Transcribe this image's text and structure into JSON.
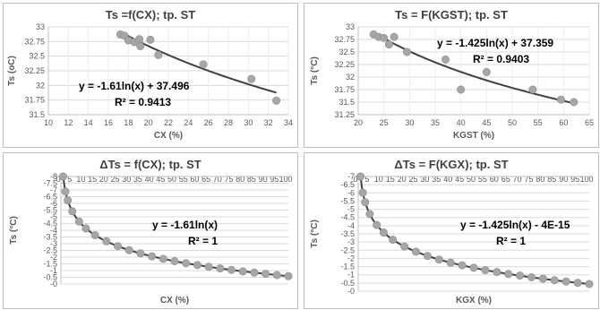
{
  "chart_data": [
    {
      "type": "scatter",
      "title": "Ts =f(CX); tp. ST",
      "xlabel": "CX (%)",
      "ylabel": "Ts (oC)",
      "xlim": [
        10,
        34
      ],
      "ylim": [
        31.5,
        33
      ],
      "xticks": [
        "10",
        "12",
        "14",
        "16",
        "18",
        "20",
        "22",
        "24",
        "26",
        "28",
        "30",
        "32",
        "34"
      ],
      "yticks": [
        "31.5",
        "31.75",
        "32",
        "32.25",
        "32.5",
        "32.75",
        "33"
      ],
      "grid": true,
      "series": [
        {
          "x": [
            17.2,
            17.6,
            18.0,
            18.6,
            19.1,
            19.2,
            20.2,
            21.0,
            25.5,
            30.3,
            32.8
          ],
          "y": [
            32.87,
            32.85,
            32.77,
            32.74,
            32.79,
            32.67,
            32.78,
            32.52,
            32.36,
            32.11,
            31.74
          ]
        }
      ],
      "trendline": {
        "kind": "log",
        "a": -1.61,
        "b": 37.496,
        "x_from": 17.2,
        "x_to": 32.8
      },
      "equation": "y = -1.61ln(x) + 37.496",
      "r2": "R² = 0.9413",
      "marker_color": "#a6a6a6",
      "line_color": "#404040"
    },
    {
      "type": "scatter",
      "title": "Ts = F(KGST); tp. ST",
      "xlabel": "KGST (%)",
      "ylabel": "Ts (°C)",
      "xlim": [
        20,
        65
      ],
      "ylim": [
        31.25,
        33
      ],
      "xticks": [
        "20",
        "25",
        "30",
        "35",
        "40",
        "45",
        "50",
        "55",
        "60",
        "65"
      ],
      "yticks": [
        "31.25",
        "31.5",
        "31.75",
        "32",
        "32.25",
        "32.5",
        "32.75",
        "33"
      ],
      "grid": true,
      "series": [
        {
          "x": [
            23.0,
            24.0,
            25.0,
            26.0,
            27.0,
            29.5,
            37.0,
            40.0,
            45.0,
            54.0,
            59.5,
            62.0
          ],
          "y": [
            32.85,
            32.8,
            32.78,
            32.65,
            32.8,
            32.5,
            32.35,
            31.75,
            32.1,
            31.75,
            31.55,
            31.5
          ]
        }
      ],
      "trendline": {
        "kind": "log",
        "a": -1.425,
        "b": 37.359,
        "x_from": 23.0,
        "x_to": 62.0
      },
      "equation": "y = -1.425ln(x) + 37.359",
      "r2": "R² = 0.9403",
      "marker_color": "#a6a6a6",
      "line_color": "#404040"
    },
    {
      "type": "line",
      "title": "ΔTs = f(CX); tp. ST",
      "xlabel": "CX (%)",
      "ylabel": "Ts (°C)",
      "xlim": [
        0,
        100
      ],
      "ylim": [
        -8,
        0
      ],
      "xticks": [
        "0",
        "5",
        "10",
        "15",
        "20",
        "25",
        "30",
        "35",
        "40",
        "45",
        "50",
        "55",
        "60",
        "65",
        "70",
        "75",
        "80",
        "85",
        "90",
        "95",
        "100"
      ],
      "yticks": [
        "-0",
        "-0.5",
        "-1",
        "-1.5",
        "-2",
        "-2.5",
        "-3",
        "-3.5",
        "-4",
        "-4.5",
        "-5",
        "-5.5",
        "-6",
        "-6.5",
        "-7",
        "-7.5",
        "-8"
      ],
      "grid": true,
      "series": [
        {
          "x": [
            1,
            2,
            3,
            5,
            8,
            11,
            15,
            20,
            25,
            30,
            35,
            40,
            45,
            50,
            55,
            60,
            65,
            70,
            75,
            80,
            85,
            90,
            95,
            100
          ],
          "y": [
            0,
            -1.12,
            -1.77,
            -2.59,
            -3.35,
            -3.86,
            -4.36,
            -4.82,
            -5.18,
            -5.48,
            -5.72,
            -5.94,
            -6.13,
            -6.3,
            -6.45,
            -6.59,
            -6.72,
            -6.84,
            -6.95,
            -7.06,
            -7.15,
            -7.24,
            -7.33,
            -7.41
          ]
        }
      ],
      "trendline": {
        "kind": "log",
        "a": -1.61,
        "b": 0,
        "x_from": 1,
        "x_to": 100
      },
      "equation": "y = -1.61ln(x)",
      "r2": "R² = 1",
      "marker_color": "#a6a6a6",
      "line_color": "#404040"
    },
    {
      "type": "line",
      "title": "ΔTs = F(KGX); tp. ST",
      "xlabel": "KGX (%)",
      "ylabel": "Ts (°C)",
      "xlim": [
        0,
        100
      ],
      "ylim": [
        -7,
        0
      ],
      "xticks": [
        "0",
        "5",
        "10",
        "15",
        "20",
        "25",
        "30",
        "35",
        "40",
        "45",
        "50",
        "55",
        "60",
        "65",
        "70",
        "75",
        "80",
        "85",
        "90",
        "95",
        "100"
      ],
      "yticks": [
        "-0",
        "-0.5",
        "-1",
        "-1.5",
        "-2",
        "-2.5",
        "-3",
        "-3.5",
        "-4",
        "-4.5",
        "-5",
        "-5.5",
        "-6",
        "-6.5",
        "-7"
      ],
      "grid": true,
      "series": [
        {
          "x": [
            1,
            2,
            3,
            5,
            8,
            11,
            15,
            20,
            25,
            30,
            35,
            40,
            45,
            50,
            55,
            60,
            65,
            70,
            75,
            80,
            85,
            90,
            95,
            100
          ],
          "y": [
            0,
            -0.99,
            -1.57,
            -2.29,
            -2.96,
            -3.42,
            -3.86,
            -4.27,
            -4.59,
            -4.85,
            -5.07,
            -5.26,
            -5.42,
            -5.57,
            -5.71,
            -5.83,
            -5.95,
            -6.05,
            -6.15,
            -6.24,
            -6.33,
            -6.41,
            -6.49,
            -6.56
          ]
        }
      ],
      "trendline": {
        "kind": "log",
        "a": -1.425,
        "b": 0,
        "x_from": 1,
        "x_to": 100
      },
      "equation": "y = -1.425ln(x) - 4E-15",
      "r2": "R² = 1",
      "marker_color": "#a6a6a6",
      "line_color": "#404040"
    }
  ]
}
